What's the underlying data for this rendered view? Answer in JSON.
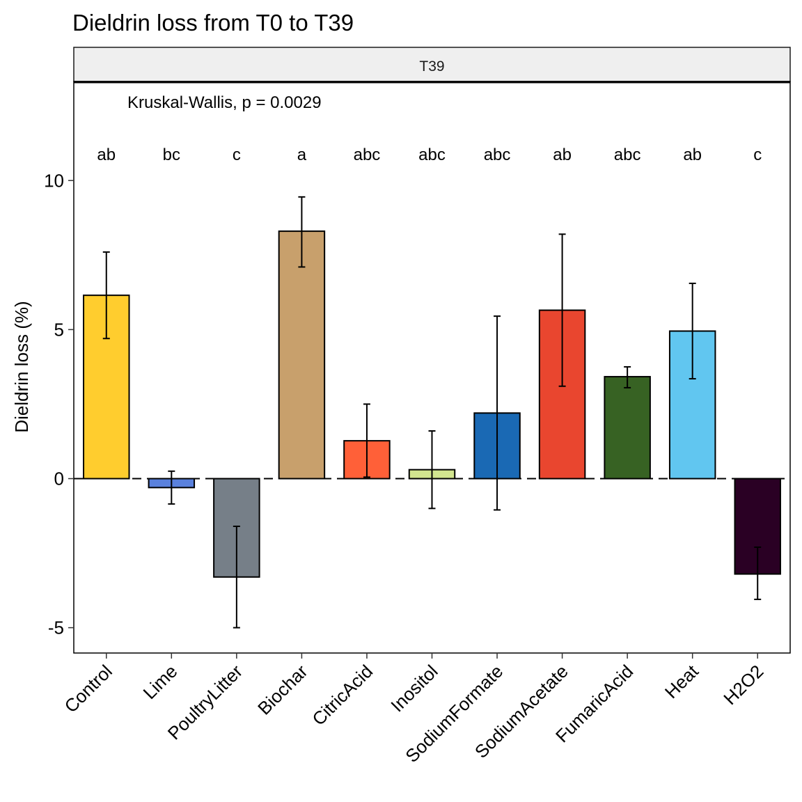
{
  "chart_data": {
    "type": "bar",
    "title": "Dieldrin loss from T0 to T39",
    "facet_label": "T39",
    "ylabel": "Dieldrin loss (%)",
    "xlabel": "",
    "annotation": "Kruskal-Wallis, p = 0.0029",
    "categories": [
      "Control",
      "Lime",
      "PoultryLitter",
      "Biochar",
      "CitricAcid",
      "Inositol",
      "SodiumFormate",
      "SodiumAcetate",
      "FumaricAcid",
      "Heat",
      "H2O2"
    ],
    "values": [
      6.15,
      -0.3,
      -3.3,
      8.3,
      1.27,
      0.3,
      2.2,
      5.65,
      3.42,
      4.95,
      -3.2
    ],
    "error_low": [
      4.7,
      -0.85,
      -5.0,
      7.1,
      0.05,
      -1.0,
      -1.05,
      3.1,
      3.05,
      3.35,
      -4.05
    ],
    "error_high": [
      7.6,
      0.25,
      -1.6,
      9.45,
      2.5,
      1.6,
      5.45,
      8.2,
      3.75,
      6.55,
      -2.3
    ],
    "group_letters": [
      "ab",
      "bc",
      "c",
      "a",
      "abc",
      "abc",
      "abc",
      "ab",
      "abc",
      "ab",
      "c"
    ],
    "colors": [
      "#FFCD2E",
      "#5A81DD",
      "#767F88",
      "#C8A06C",
      "#FF6038",
      "#D2E58F",
      "#1A69B4",
      "#E9462F",
      "#376223",
      "#61C6F0",
      "#2A0024"
    ],
    "yticks": [
      -5,
      0,
      5,
      10
    ],
    "ytick_labels": [
      "-5",
      "0",
      "5",
      "10"
    ],
    "ylim": [
      -5.85,
      13.3
    ],
    "reference_line": 0,
    "grid": false
  }
}
